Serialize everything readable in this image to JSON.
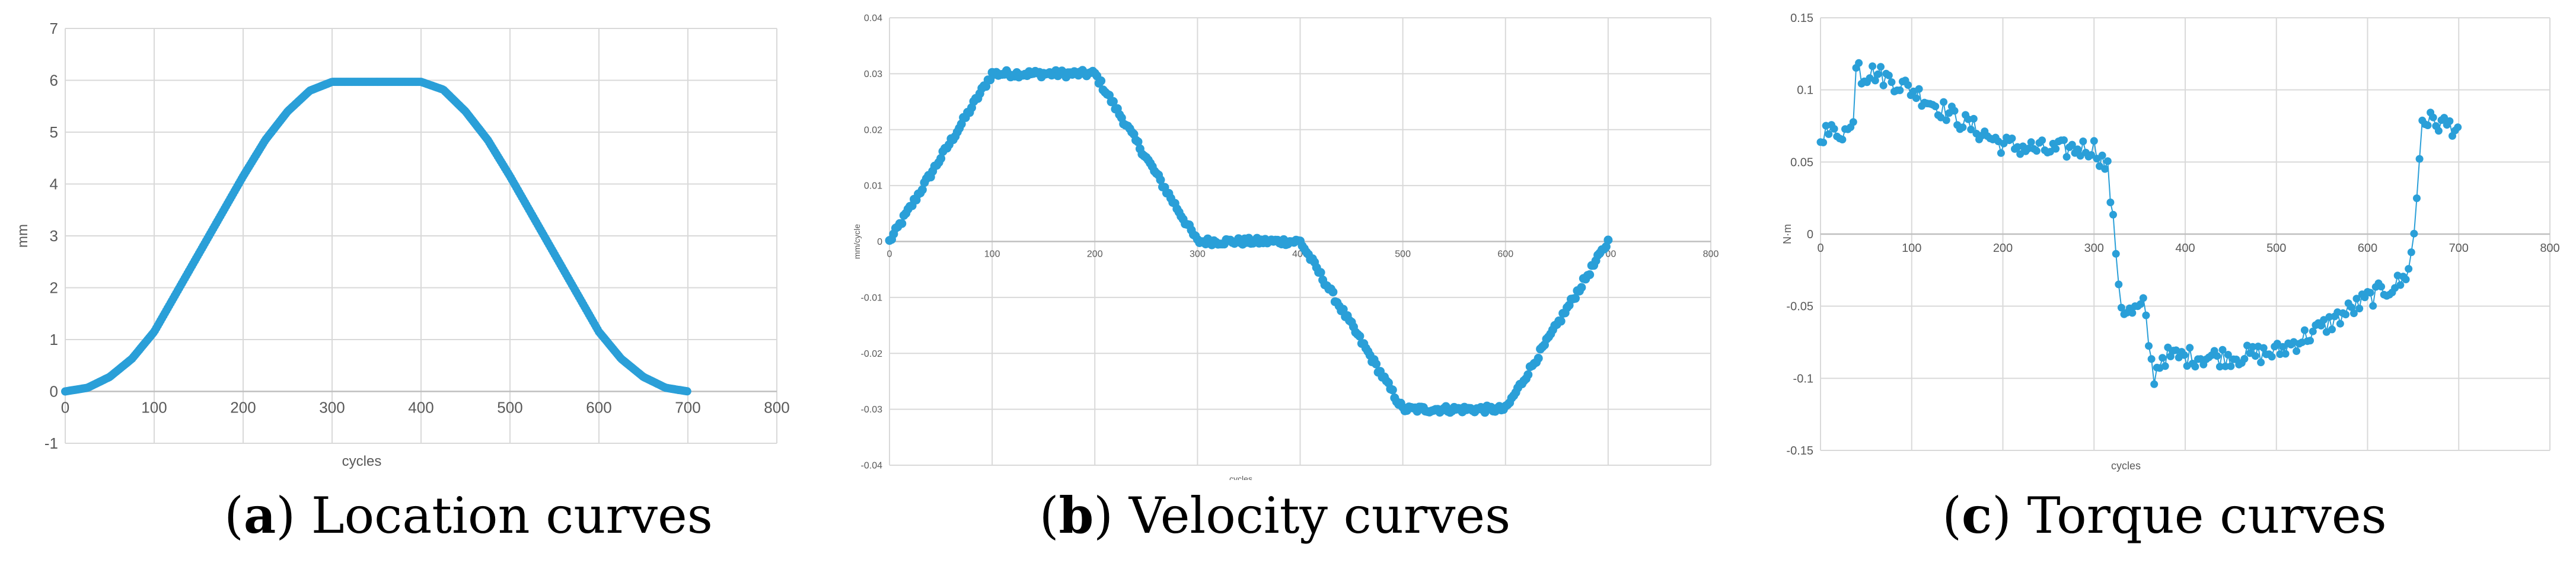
{
  "colors": {
    "series": "#2a9fd8",
    "grid": "#d9d9d9",
    "axis_text": "#595959"
  },
  "captions": [
    {
      "letter": "a",
      "text": "Location curves"
    },
    {
      "letter": "b",
      "text": "Velocity curves"
    },
    {
      "letter": "c",
      "text": "Torque curves"
    }
  ],
  "chart_data": [
    {
      "type": "scatter",
      "title": "",
      "xlabel": "cycles",
      "ylabel": "mm",
      "xlim": [
        0,
        800
      ],
      "ylim": [
        -1,
        7
      ],
      "xticks": [
        "0",
        "100",
        "200",
        "300",
        "400",
        "500",
        "600",
        "700",
        "800"
      ],
      "yticks": [
        "-1",
        "0",
        "1",
        "2",
        "3",
        "4",
        "5",
        "6",
        "7"
      ],
      "grid": true,
      "series": [
        {
          "name": "Location",
          "description": "S-shaped position curve: rises 0 to 6 mm over cycles 0-300, flat at 6 mm until ~400, falls back to 0 by 700",
          "x": [
            0,
            25,
            50,
            75,
            100,
            125,
            150,
            175,
            200,
            225,
            250,
            275,
            300,
            350,
            400,
            425,
            450,
            475,
            500,
            525,
            550,
            575,
            600,
            625,
            650,
            675,
            700
          ],
          "y": [
            0,
            0.07,
            0.28,
            0.63,
            1.15,
            1.9,
            2.65,
            3.4,
            4.15,
            4.85,
            5.4,
            5.8,
            5.97,
            5.97,
            5.97,
            5.82,
            5.4,
            4.85,
            4.15,
            3.4,
            2.65,
            1.9,
            1.15,
            0.63,
            0.28,
            0.07,
            0
          ]
        }
      ]
    },
    {
      "type": "scatter",
      "title": "",
      "xlabel": "cycles",
      "ylabel": "mm/cycle",
      "xlim": [
        0,
        800
      ],
      "ylim": [
        -0.04,
        0.04
      ],
      "xticks": [
        "0",
        "100",
        "200",
        "300",
        "400",
        "500",
        "600",
        "700",
        "800"
      ],
      "yticks": [
        "-0.04",
        "-0.03",
        "-0.02",
        "-0.01",
        "0",
        "0.01",
        "0.02",
        "0.03",
        "0.04"
      ],
      "grid": true,
      "series": [
        {
          "name": "Velocity",
          "description": "Trapezoidal velocity profile",
          "x": [
            0,
            100,
            200,
            300,
            400,
            500,
            600,
            700
          ],
          "y": [
            0,
            0.03,
            0.03,
            0,
            0,
            -0.03,
            -0.03,
            0
          ]
        }
      ]
    },
    {
      "type": "line",
      "title": "",
      "xlabel": "cycles",
      "ylabel": "N·m",
      "xlim": [
        0,
        800
      ],
      "ylim": [
        -0.15,
        0.15
      ],
      "xticks": [
        "0",
        "100",
        "200",
        "300",
        "400",
        "500",
        "600",
        "700",
        "800"
      ],
      "yticks": [
        "-0.15",
        "-0.1",
        "-0.05",
        "0",
        "0.05",
        "0.1",
        "0.15"
      ],
      "grid": true,
      "series": [
        {
          "name": "Torque",
          "description": "Noisy torque: ~0.07 start, spike to ~0.13 near cycle 40, decays to ~0.06 by 300, drops to ~-0.05 near 335, ~-0.085 from 370-500, rises to ~-0.03 by 650, jumps to ~0.08 at 660, ~0.074 at 700",
          "x": [
            0,
            35,
            40,
            45,
            60,
            100,
            150,
            200,
            250,
            300,
            315,
            330,
            340,
            355,
            365,
            375,
            400,
            450,
            500,
            550,
            600,
            640,
            650,
            660,
            670,
            700
          ],
          "y": [
            0.07,
            0.072,
            0.13,
            0.11,
            0.112,
            0.1,
            0.08,
            0.062,
            0.058,
            0.06,
            0.045,
            -0.05,
            -0.055,
            -0.05,
            -0.1,
            -0.085,
            -0.085,
            -0.085,
            -0.082,
            -0.065,
            -0.045,
            -0.032,
            -0.01,
            0.08,
            0.078,
            0.074
          ]
        }
      ]
    }
  ]
}
